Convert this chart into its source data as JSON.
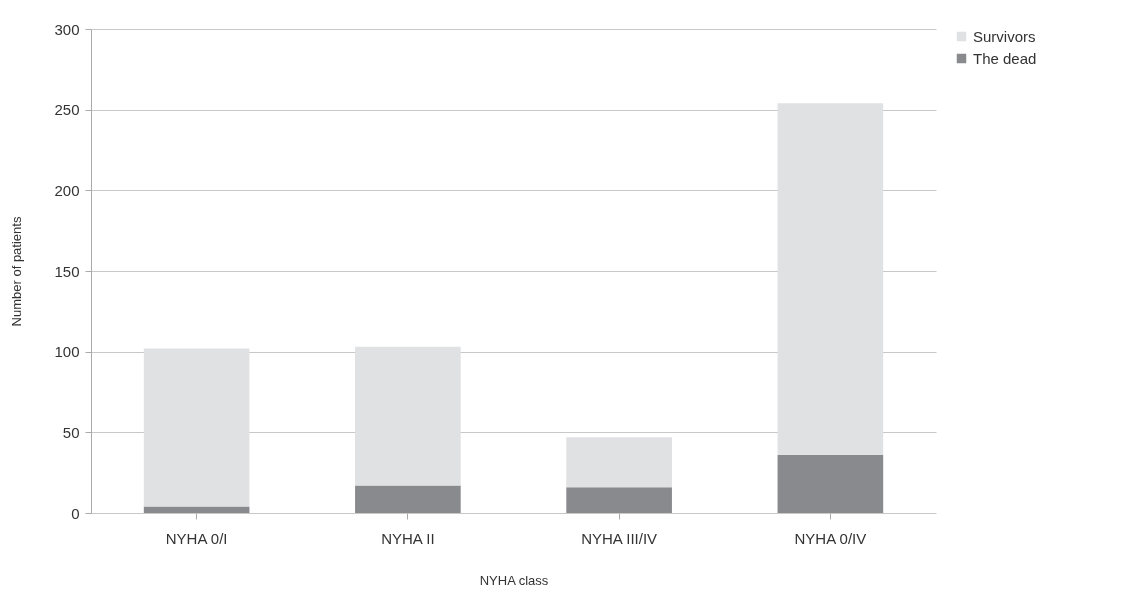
{
  "chart_data": {
    "type": "bar",
    "stacked": true,
    "xlabel": "NYHA class",
    "ylabel": "Number of patients",
    "categories": [
      "NYHA 0/I",
      "NYHA II",
      "NYHA III/IV",
      "NYHA 0/IV"
    ],
    "series": [
      {
        "name": "The dead",
        "color": "#898a8e",
        "values": [
          4,
          17,
          16,
          36
        ]
      },
      {
        "name": "Survivors",
        "color": "#e0e1e3",
        "values": [
          98,
          86,
          31,
          218
        ]
      }
    ],
    "ylim": [
      0,
      300
    ],
    "yticks": [
      0,
      50,
      100,
      150,
      200,
      250,
      300
    ],
    "grid": "y",
    "legend": "right"
  }
}
